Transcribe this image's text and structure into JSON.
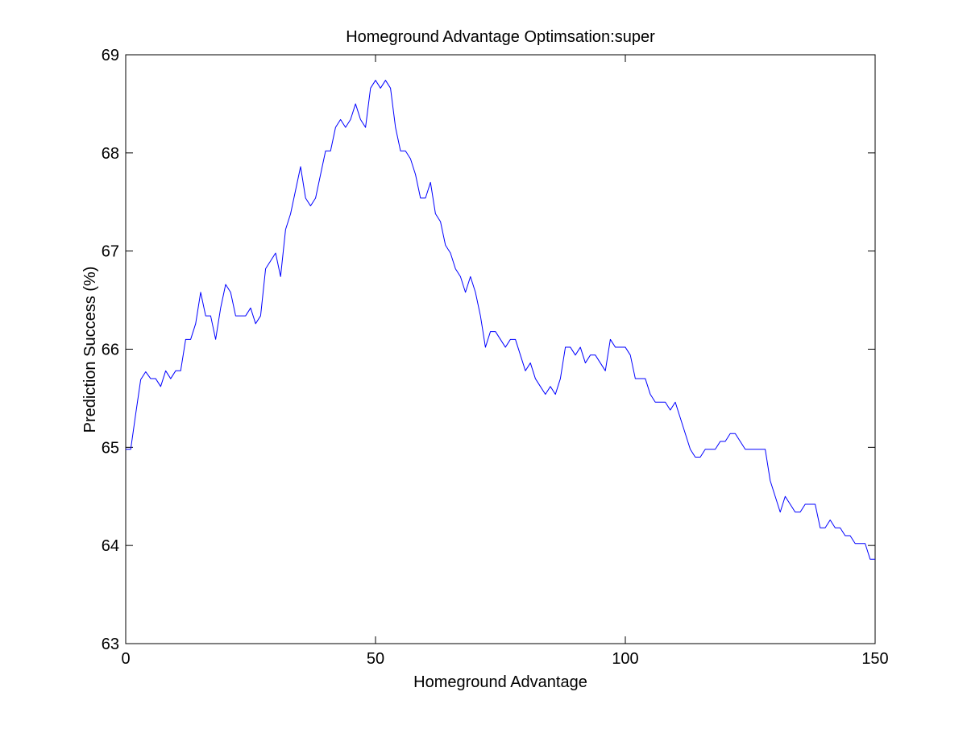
{
  "chart_data": {
    "type": "line",
    "title": "Homeground Advantage Optimsation:super",
    "xlabel": "Homeground Advantage",
    "ylabel": "Prediction Success (%)",
    "xlim": [
      0,
      150
    ],
    "ylim": [
      63,
      69
    ],
    "xticks": [
      0,
      50,
      100,
      150
    ],
    "yticks": [
      63,
      64,
      65,
      66,
      67,
      68,
      69
    ],
    "grid": false,
    "legend": "none",
    "series": [
      {
        "color": "#0000ff",
        "x": [
          0,
          1,
          2,
          3,
          4,
          5,
          6,
          7,
          8,
          9,
          10,
          11,
          12,
          13,
          14,
          15,
          16,
          17,
          18,
          19,
          20,
          21,
          22,
          23,
          24,
          25,
          26,
          27,
          28,
          29,
          30,
          31,
          32,
          33,
          34,
          35,
          36,
          37,
          38,
          39,
          40,
          41,
          42,
          43,
          44,
          45,
          46,
          47,
          48,
          49,
          50,
          51,
          52,
          53,
          54,
          55,
          56,
          57,
          58,
          59,
          60,
          61,
          62,
          63,
          64,
          65,
          66,
          67,
          68,
          69,
          70,
          71,
          72,
          73,
          74,
          75,
          76,
          77,
          78,
          79,
          80,
          81,
          82,
          83,
          84,
          85,
          86,
          87,
          88,
          89,
          90,
          91,
          92,
          93,
          94,
          95,
          96,
          97,
          98,
          99,
          100,
          101,
          102,
          103,
          104,
          105,
          106,
          107,
          108,
          109,
          110,
          111,
          112,
          113,
          114,
          115,
          116,
          117,
          118,
          119,
          120,
          121,
          122,
          123,
          124,
          125,
          126,
          127,
          128,
          129,
          130,
          131,
          132,
          133,
          134,
          135,
          136,
          137,
          138,
          139,
          140,
          141,
          142,
          143,
          144,
          145,
          146,
          147,
          148,
          149,
          150
        ],
        "y": [
          64.98,
          64.98,
          65.34,
          65.69,
          65.77,
          65.7,
          65.7,
          65.62,
          65.78,
          65.7,
          65.78,
          65.78,
          66.1,
          66.1,
          66.26,
          66.58,
          66.34,
          66.34,
          66.1,
          66.42,
          66.66,
          66.58,
          66.34,
          66.34,
          66.34,
          66.42,
          66.26,
          66.34,
          66.82,
          66.9,
          66.98,
          66.74,
          67.22,
          67.38,
          67.62,
          67.86,
          67.54,
          67.46,
          67.54,
          67.78,
          68.02,
          68.02,
          68.26,
          68.34,
          68.26,
          68.34,
          68.5,
          68.34,
          68.26,
          68.66,
          68.74,
          68.66,
          68.74,
          68.66,
          68.26,
          68.02,
          68.02,
          67.94,
          67.78,
          67.54,
          67.54,
          67.7,
          67.38,
          67.3,
          67.06,
          66.98,
          66.82,
          66.74,
          66.58,
          66.74,
          66.58,
          66.34,
          66.02,
          66.18,
          66.18,
          66.1,
          66.02,
          66.1,
          66.1,
          65.94,
          65.78,
          65.86,
          65.7,
          65.62,
          65.54,
          65.62,
          65.54,
          65.7,
          66.02,
          66.02,
          65.94,
          66.02,
          65.86,
          65.94,
          65.94,
          65.86,
          65.78,
          66.1,
          66.02,
          66.02,
          66.02,
          65.94,
          65.7,
          65.7,
          65.7,
          65.54,
          65.46,
          65.46,
          65.46,
          65.38,
          65.46,
          65.3,
          65.14,
          64.98,
          64.9,
          64.9,
          64.98,
          64.98,
          64.98,
          65.06,
          65.06,
          65.14,
          65.14,
          65.06,
          64.98,
          64.98,
          64.98,
          64.98,
          64.98,
          64.66,
          64.5,
          64.34,
          64.5,
          64.42,
          64.34,
          64.34,
          64.42,
          64.42,
          64.42,
          64.18,
          64.18,
          64.26,
          64.18,
          64.18,
          64.1,
          64.1,
          64.02,
          64.02,
          64.02,
          63.86,
          63.86
        ]
      }
    ]
  }
}
